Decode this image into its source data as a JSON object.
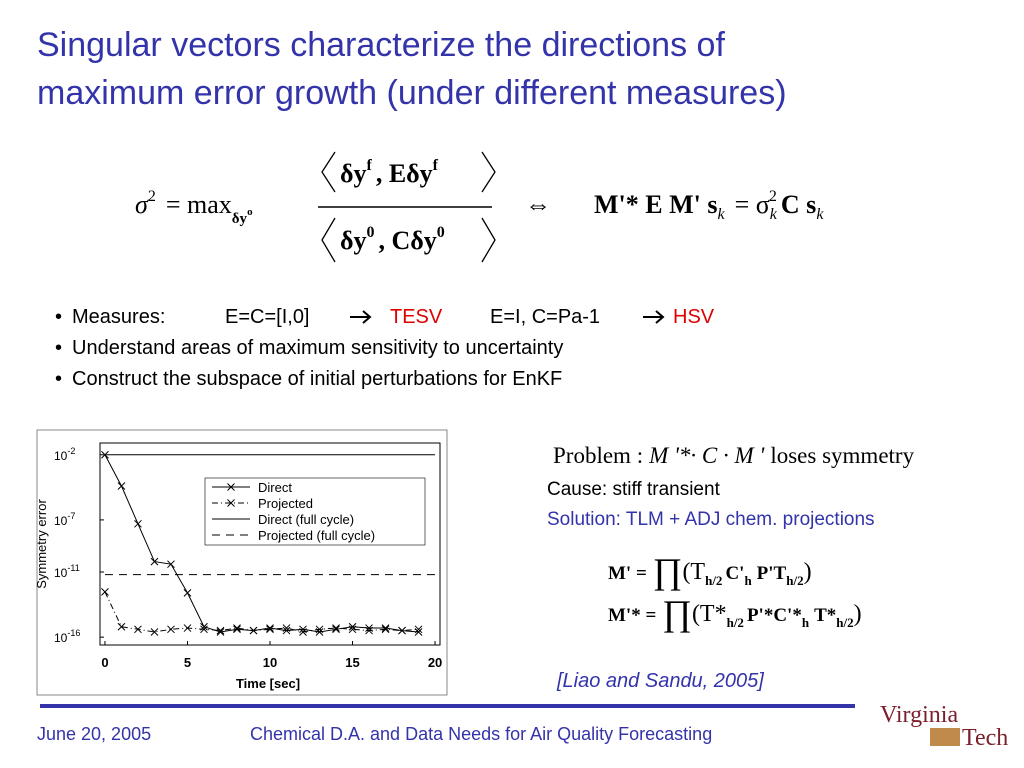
{
  "title": [
    "Singular vectors characterize the directions of",
    "maximum error growth (under different measures)"
  ],
  "equation": {
    "lhs": [
      "σ",
      "2",
      "= max",
      "δy",
      "o"
    ],
    "numerator": [
      "δy",
      "f",
      ", E",
      "δy",
      "f"
    ],
    "denominator": [
      "δy",
      "0",
      ", C",
      "δy",
      "0"
    ],
    "equivalence": "⇔",
    "rhs": [
      "M'* E M' s",
      "k",
      "= σ",
      "k",
      "2",
      "C s",
      "k"
    ]
  },
  "bullets": {
    "measures": {
      "label": "Measures:",
      "items": [
        {
          "text": "E=C=[I,0]",
          "result": "TESV"
        },
        {
          "text": "E=I, C=Pa-1",
          "result": "HSV"
        }
      ]
    },
    "lines": [
      "Understand areas of maximum sensitivity to uncertainty",
      "Construct the subspace of initial perturbations for EnKF"
    ]
  },
  "problem": [
    "Problem :",
    "M '*· C · M '",
    "loses symmetry"
  ],
  "cause": "Cause: stiff transient",
  "solution": "Solution: TLM + ADJ chem. projections",
  "formula_m": [
    "M' =",
    "∏",
    "(T",
    "h/2",
    "C'",
    "h",
    "P'T",
    "h/2",
    ")"
  ],
  "formula_mstar": [
    "M'* =",
    "∏",
    "(T*",
    "h/2",
    "P'*C'*",
    "h",
    "T*",
    "h/2",
    ")"
  ],
  "citation": "[Liao and Sandu, 2005]",
  "footer": {
    "date": "June 20, 2005",
    "talk": "Chemical D.A. and Data Needs for Air Quality Forecasting",
    "logo": [
      "Virginia",
      "Tech"
    ]
  },
  "chart_data": {
    "type": "line",
    "x_label": "Time [sec]",
    "y_label": "Symmetry error",
    "xlim": [
      -0.3,
      20.3
    ],
    "ylim": [
      2.5e-17,
      0.08
    ],
    "log_y": true,
    "xticks": [
      0,
      5,
      10,
      15,
      20
    ],
    "yticks": [
      {
        "value": 0.01,
        "label": "10",
        "exponent": "-2"
      },
      {
        "value": 1e-07,
        "label": "10",
        "exponent": "-7"
      },
      {
        "value": 1e-11,
        "label": "10",
        "exponent": "-11"
      },
      {
        "value": 1e-16,
        "label": "10",
        "exponent": "-16"
      }
    ],
    "series": [
      {
        "name": "Direct",
        "color": "#000000",
        "style": "solid",
        "marker": "x",
        "x": [
          0,
          1,
          2,
          3,
          4,
          5,
          6,
          7,
          8,
          9,
          10,
          11,
          12,
          13,
          14,
          15,
          16,
          17,
          18,
          19
        ],
        "values": [
          0.01,
          4e-05,
          5e-08,
          6.3e-11,
          4e-11,
          2.5e-13,
          6.3e-16,
          2.5e-16,
          4e-16,
          3.2e-16,
          5e-16,
          3.2e-16,
          4e-16,
          2.5e-16,
          4e-16,
          6.3e-16,
          5e-16,
          5e-16,
          3.2e-16,
          2.5e-16
        ]
      },
      {
        "name": "Projected",
        "color": "#000000",
        "style": "dash-dot",
        "marker": "x",
        "x": [
          0,
          1,
          2,
          3,
          4,
          5,
          6,
          7,
          8,
          9,
          10,
          11,
          12,
          13,
          14,
          15,
          16,
          17,
          18,
          19
        ],
        "values": [
          3e-13,
          6.3e-16,
          4e-16,
          2.5e-16,
          4e-16,
          5e-16,
          4e-16,
          3.2e-16,
          5e-16,
          3.2e-16,
          4e-16,
          5e-16,
          2.5e-16,
          4e-16,
          5e-16,
          4e-16,
          3.2e-16,
          4e-16,
          3.2e-16,
          4e-16
        ]
      },
      {
        "name": "Direct (full cycle)",
        "color": "#000000",
        "style": "solid",
        "marker": "none",
        "x": [
          0,
          20
        ],
        "values": [
          0.01,
          0.01
        ]
      },
      {
        "name": "Projected (full cycle)",
        "color": "#000000",
        "style": "dashed",
        "marker": "none",
        "x": [
          0,
          20
        ],
        "values": [
          6.3e-12,
          6.3e-12
        ]
      }
    ]
  }
}
